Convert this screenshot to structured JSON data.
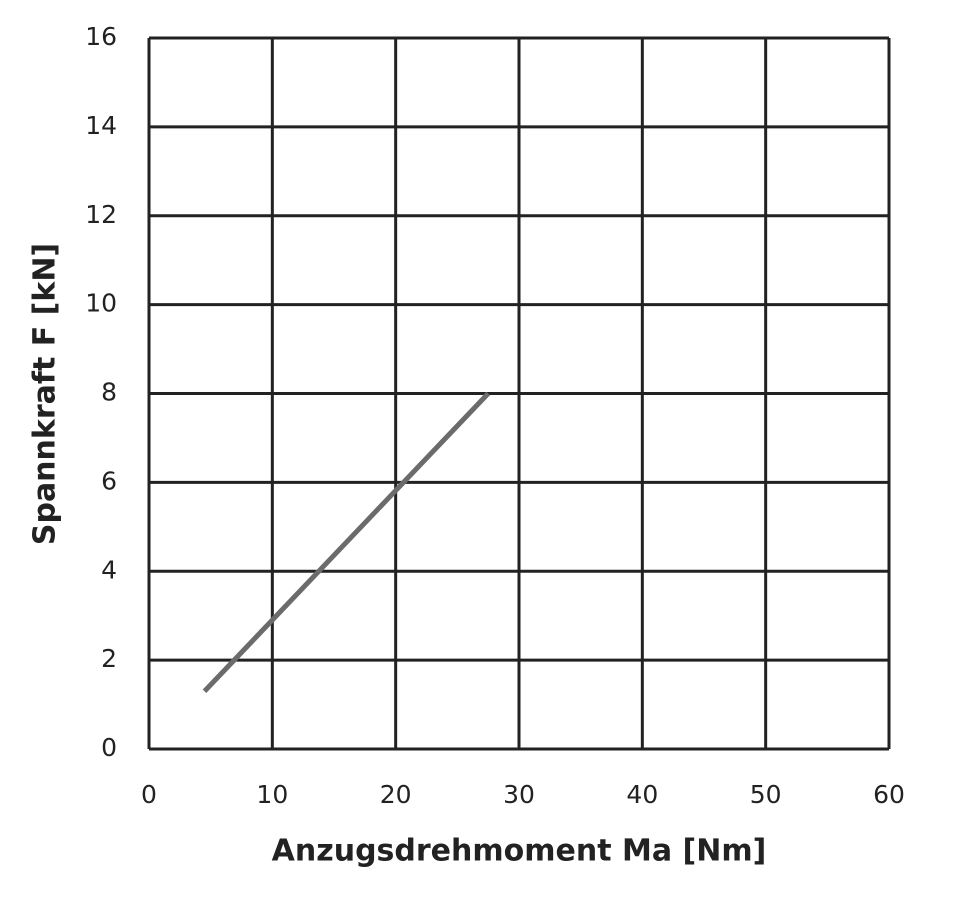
{
  "chart_data": {
    "type": "line",
    "x_label": "Anzugsdrehmoment Ma [Nm]",
    "y_label": "Spannkraft F [kN]",
    "x": [
      4.5,
      27.5
    ],
    "series": [
      {
        "color": "#6b6b6b",
        "values": [
          1.3,
          8.0
        ]
      }
    ],
    "xlim": [
      0,
      60
    ],
    "xticks": [
      0,
      10,
      20,
      30,
      40,
      50,
      60
    ],
    "ylim": [
      0,
      16
    ],
    "yticks": [
      0,
      2,
      4,
      6,
      8,
      10,
      12,
      14,
      16
    ],
    "grid": true
  }
}
